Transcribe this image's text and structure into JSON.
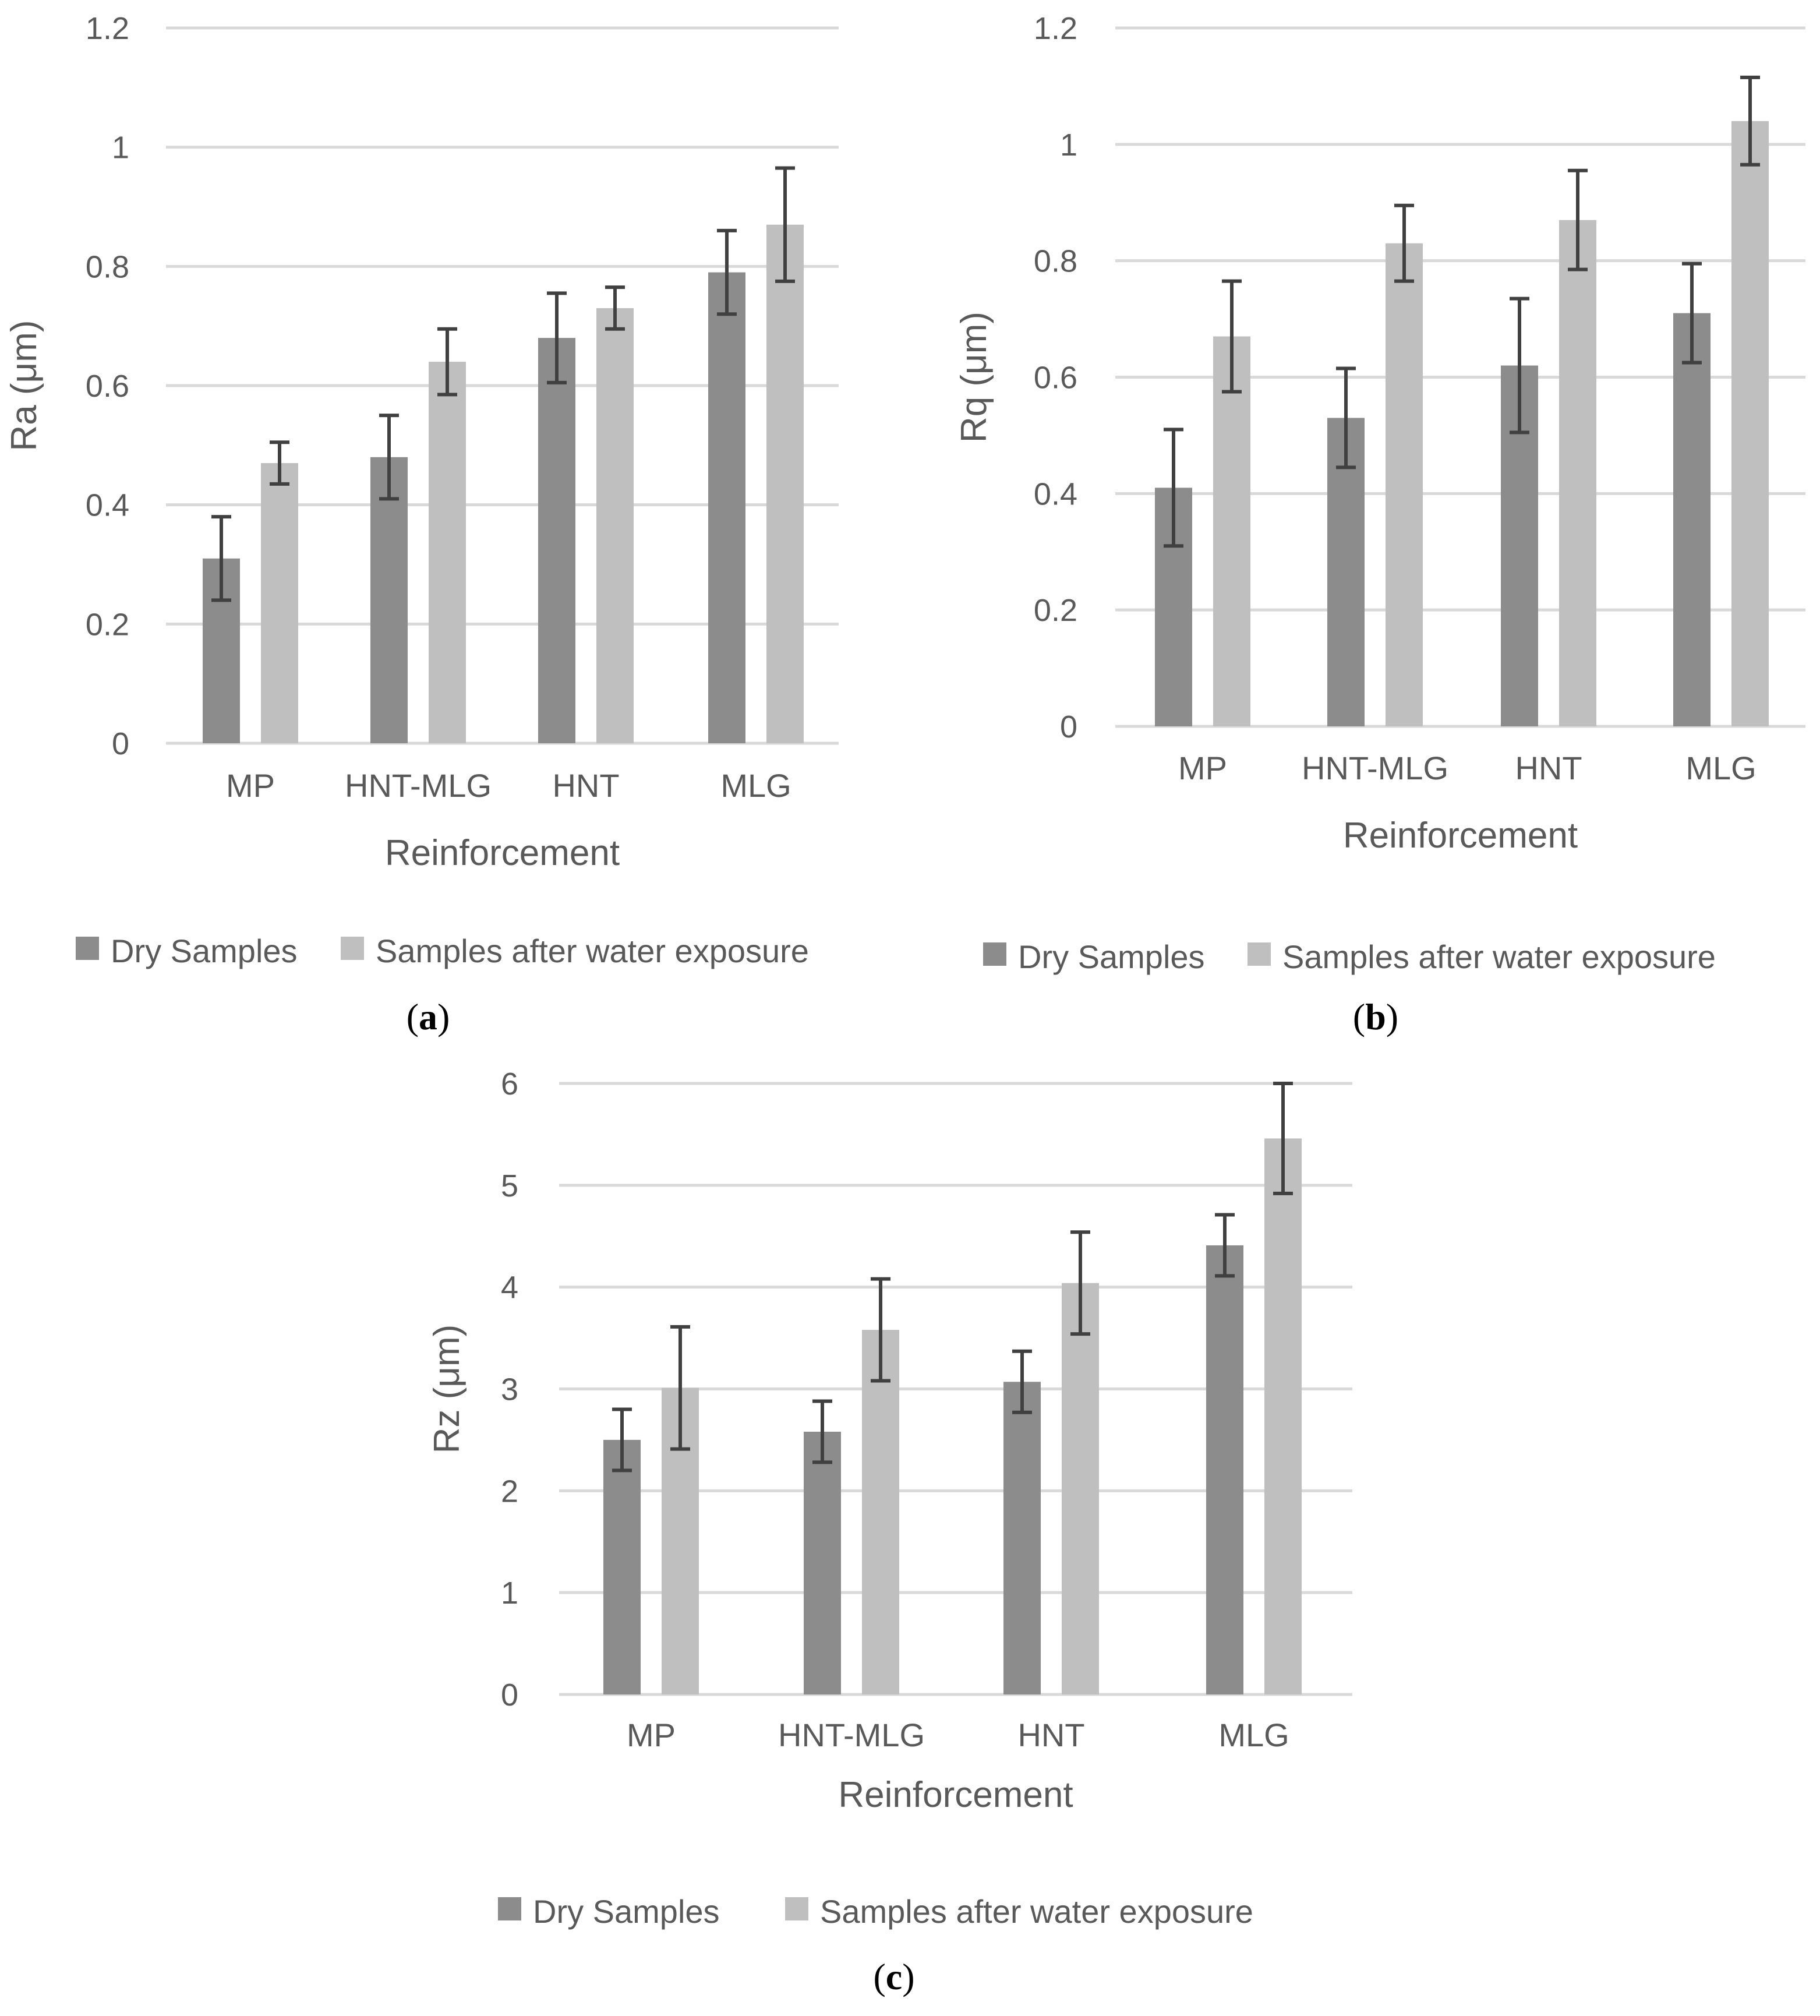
{
  "colors": {
    "dry": "#8c8c8c",
    "wet": "#bfbfbf",
    "grid": "#d9d9d9",
    "error": "#404040",
    "text": "#595959"
  },
  "chart_data": [
    {
      "id": "a",
      "type": "bar",
      "caption": "a",
      "categories": [
        "MP",
        "HNT-MLG",
        "HNT",
        "MLG"
      ],
      "xlabel": "Reinforcement",
      "ylabel": "Ra (μm)",
      "ylim": [
        0,
        1.2
      ],
      "yticks": [
        "0",
        "0.2",
        "0.4",
        "0.6",
        "0.8",
        "1",
        "1.2"
      ],
      "grid": true,
      "legend_position": "bottom",
      "series": [
        {
          "name": "Dry Samples",
          "values": [
            0.31,
            0.48,
            0.68,
            0.79
          ],
          "errors": [
            0.07,
            0.07,
            0.075,
            0.07
          ]
        },
        {
          "name": "Samples after water exposure",
          "values": [
            0.47,
            0.64,
            0.73,
            0.87
          ],
          "errors": [
            0.035,
            0.055,
            0.035,
            0.095
          ]
        }
      ]
    },
    {
      "id": "b",
      "type": "bar",
      "caption": "b",
      "categories": [
        "MP",
        "HNT-MLG",
        "HNT",
        "MLG"
      ],
      "xlabel": "Reinforcement",
      "ylabel": "Rq (μm)",
      "ylim": [
        0,
        1.2
      ],
      "yticks": [
        "0",
        "0.2",
        "0.4",
        "0.6",
        "0.8",
        "1",
        "1.2"
      ],
      "grid": true,
      "legend_position": "bottom",
      "series": [
        {
          "name": "Dry Samples",
          "values": [
            0.41,
            0.53,
            0.62,
            0.71
          ],
          "errors": [
            0.1,
            0.085,
            0.115,
            0.085
          ]
        },
        {
          "name": "Samples after water exposure",
          "values": [
            0.67,
            0.83,
            0.87,
            1.04
          ],
          "errors": [
            0.095,
            0.065,
            0.085,
            0.075
          ]
        }
      ]
    },
    {
      "id": "c",
      "type": "bar",
      "caption": "c",
      "categories": [
        "MP",
        "HNT-MLG",
        "HNT",
        "MLG"
      ],
      "xlabel": "Reinforcement",
      "ylabel": "Rz (μm)",
      "ylim": [
        0,
        6
      ],
      "yticks": [
        "0",
        "1",
        "2",
        "3",
        "4",
        "5",
        "6"
      ],
      "grid": true,
      "legend_position": "bottom",
      "series": [
        {
          "name": "Dry Samples",
          "values": [
            2.5,
            2.58,
            3.07,
            4.41
          ],
          "errors": [
            0.3,
            0.3,
            0.3,
            0.3
          ]
        },
        {
          "name": "Samples after water exposure",
          "values": [
            3.01,
            3.58,
            4.04,
            5.46
          ],
          "errors": [
            0.6,
            0.5,
            0.5,
            0.54
          ]
        }
      ]
    }
  ]
}
